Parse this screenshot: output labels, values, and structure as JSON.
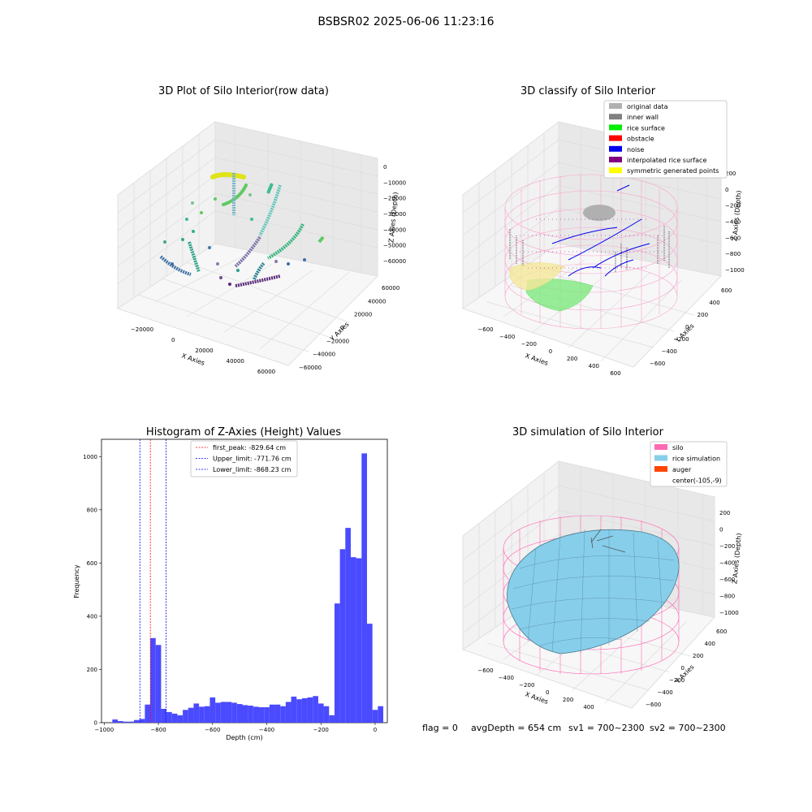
{
  "figure": {
    "suptitle": "BSBSR02 2025-06-06 11:23:16",
    "footer": {
      "flag": "flag = 0",
      "avg_depth": "avgDepth = 654 cm",
      "sv1": "sv1 = 700~2300",
      "sv2": "sv2 = 700~2300"
    }
  },
  "chart_data": [
    {
      "type": "scatter",
      "title": "3D Plot of Silo Interior(row data)",
      "xlabel": "X Axies",
      "ylabel": "Y Axies",
      "zlabel": "Z Axies (Depth)",
      "x_ticks": [
        "-20000",
        "0",
        "20000",
        "40000",
        "60000"
      ],
      "y_ticks": [
        "-60000",
        "-40000",
        "-20000",
        "0",
        "20000",
        "40000",
        "60000"
      ],
      "z_ticks": [
        "0",
        "-10000",
        "-20000",
        "-30000",
        "-40000",
        "-50000",
        "-60000"
      ],
      "colormap": "viridis"
    },
    {
      "type": "scatter",
      "title": "3D classify of Silo Interior",
      "xlabel": "X Axies",
      "ylabel": "Y Axies",
      "zlabel": "Z Axies (Depth)",
      "x_ticks": [
        "-600",
        "-400",
        "-200",
        "0",
        "200",
        "400",
        "600"
      ],
      "y_ticks": [
        "-600",
        "-400",
        "-200",
        "0",
        "200",
        "400",
        "600"
      ],
      "z_ticks": [
        "200",
        "0",
        "-200",
        "-400",
        "-600",
        "-800",
        "-1000"
      ],
      "legend_position": "top-right",
      "legend": [
        {
          "label": "original data",
          "color": "#b0b0b0"
        },
        {
          "label": "inner wall",
          "color": "#808080"
        },
        {
          "label": "rice surface",
          "color": "#00ee00"
        },
        {
          "label": "obstacle",
          "color": "#ff0000"
        },
        {
          "label": "noise",
          "color": "#0000ee"
        },
        {
          "label": "interpolated rice surface",
          "color": "#800080"
        },
        {
          "label": "symmetric generated points",
          "color": "#ffff00"
        }
      ],
      "wire_color": "#f7a6cf"
    },
    {
      "type": "bar",
      "title": "Histogram of Z-Axies (Height) Values",
      "xlabel": "Depth (cm)",
      "ylabel": "Frequency",
      "xlim": [
        -1010,
        45
      ],
      "ylim": [
        0,
        1065
      ],
      "x_ticks": [
        -1000,
        -800,
        -600,
        -400,
        -200,
        0
      ],
      "y_ticks": [
        0,
        200,
        400,
        600,
        800,
        1000
      ],
      "bar_color": "#4a4aff",
      "bin_width": 20,
      "bins": [
        {
          "x": -960,
          "y": 12
        },
        {
          "x": -940,
          "y": 6
        },
        {
          "x": -920,
          "y": 4
        },
        {
          "x": -900,
          "y": 4
        },
        {
          "x": -880,
          "y": 10
        },
        {
          "x": -860,
          "y": 14
        },
        {
          "x": -840,
          "y": 68
        },
        {
          "x": -820,
          "y": 318
        },
        {
          "x": -800,
          "y": 292
        },
        {
          "x": -780,
          "y": 52
        },
        {
          "x": -760,
          "y": 40
        },
        {
          "x": -740,
          "y": 34
        },
        {
          "x": -720,
          "y": 28
        },
        {
          "x": -700,
          "y": 48
        },
        {
          "x": -680,
          "y": 56
        },
        {
          "x": -660,
          "y": 72
        },
        {
          "x": -640,
          "y": 60
        },
        {
          "x": -620,
          "y": 62
        },
        {
          "x": -600,
          "y": 95
        },
        {
          "x": -580,
          "y": 75
        },
        {
          "x": -560,
          "y": 78
        },
        {
          "x": -540,
          "y": 78
        },
        {
          "x": -520,
          "y": 75
        },
        {
          "x": -500,
          "y": 70
        },
        {
          "x": -480,
          "y": 66
        },
        {
          "x": -460,
          "y": 64
        },
        {
          "x": -440,
          "y": 60
        },
        {
          "x": -420,
          "y": 58
        },
        {
          "x": -400,
          "y": 58
        },
        {
          "x": -380,
          "y": 68
        },
        {
          "x": -360,
          "y": 68
        },
        {
          "x": -340,
          "y": 62
        },
        {
          "x": -320,
          "y": 78
        },
        {
          "x": -300,
          "y": 98
        },
        {
          "x": -280,
          "y": 88
        },
        {
          "x": -260,
          "y": 92
        },
        {
          "x": -240,
          "y": 95
        },
        {
          "x": -220,
          "y": 100
        },
        {
          "x": -200,
          "y": 72
        },
        {
          "x": -180,
          "y": 62
        },
        {
          "x": -160,
          "y": 28
        },
        {
          "x": -140,
          "y": 448
        },
        {
          "x": -120,
          "y": 652
        },
        {
          "x": -100,
          "y": 732
        },
        {
          "x": -80,
          "y": 622
        },
        {
          "x": -60,
          "y": 618
        },
        {
          "x": -40,
          "y": 1012
        },
        {
          "x": -20,
          "y": 372
        },
        {
          "x": 0,
          "y": 48
        },
        {
          "x": 20,
          "y": 62
        }
      ],
      "vlines": [
        {
          "x": -829.64,
          "color": "#ff0000",
          "label": "first_peak: -829.64 cm"
        },
        {
          "x": -771.76,
          "color": "#0000ff",
          "label": "Upper_limit: -771.76 cm"
        },
        {
          "x": -868.23,
          "color": "#0000ff",
          "label": "Lower_limit: -868.23 cm"
        }
      ],
      "legend_position": "top-center"
    },
    {
      "type": "scatter",
      "title": "3D simulation of Silo Interior",
      "xlabel": "X Axies",
      "ylabel": "Y Axies",
      "zlabel": "Z Axies (Depth)",
      "x_ticks": [
        "-600",
        "-400",
        "-200",
        "0",
        "200",
        "400"
      ],
      "y_ticks": [
        "-600",
        "-400",
        "-200",
        "0",
        "200",
        "400",
        "600"
      ],
      "z_ticks": [
        "200",
        "0",
        "-200",
        "-400",
        "-600",
        "-800",
        "-1000"
      ],
      "legend_position": "top-right",
      "legend": [
        {
          "label": "silo",
          "color": "#ff69b4"
        },
        {
          "label": "rice simulation",
          "color": "#87ceeb"
        },
        {
          "label": "auger",
          "color": "#ff4500"
        },
        {
          "label": "center(-105,-9)",
          "color": "#ffffff"
        }
      ]
    }
  ]
}
